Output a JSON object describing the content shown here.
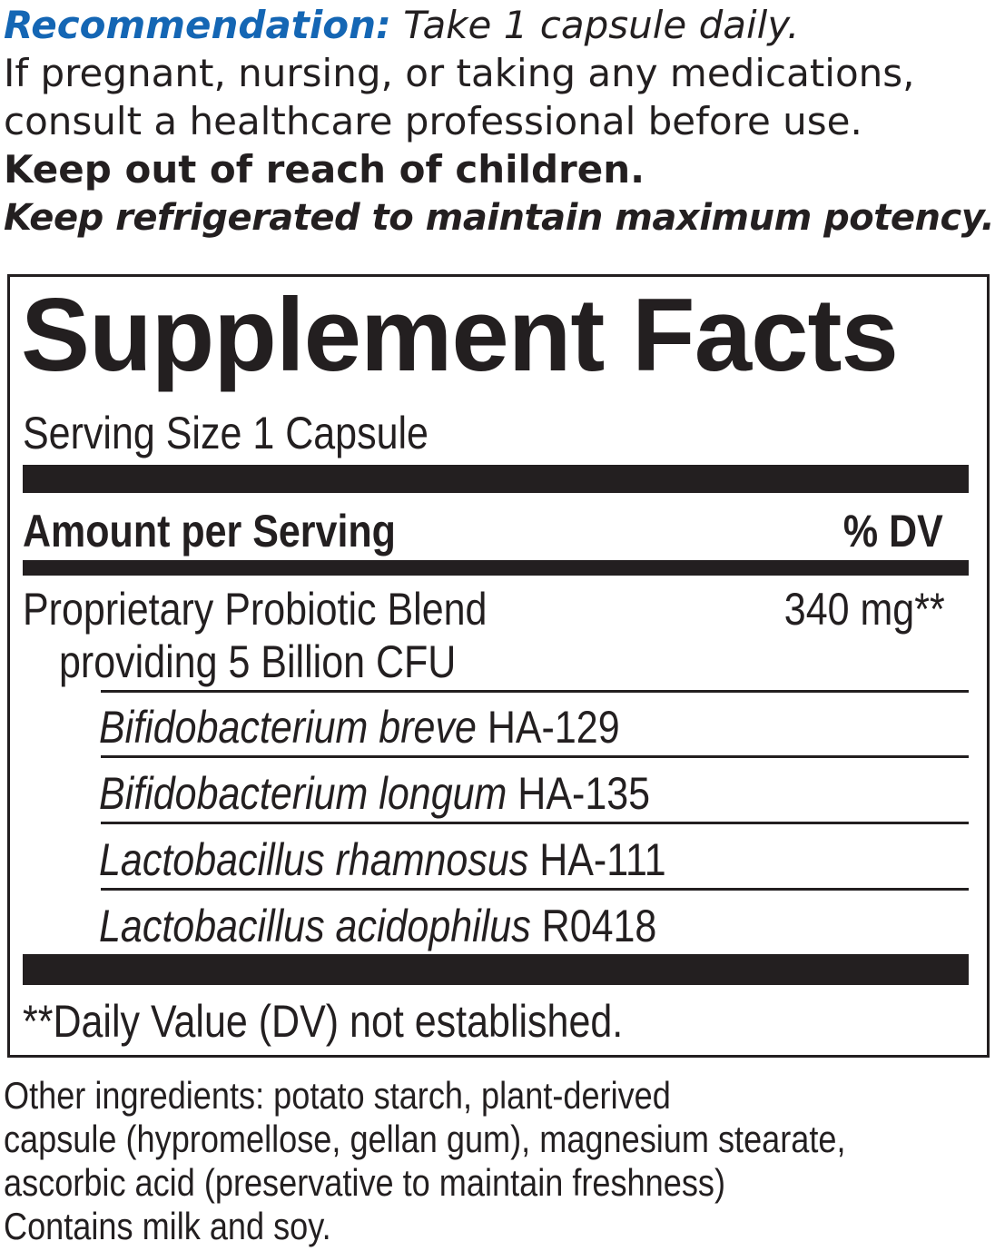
{
  "recommendation": {
    "label": "Recommendation:",
    "text": " Take 1 capsule daily.",
    "warning_1": "If pregnant, nursing, or taking any medications,",
    "warning_2": "consult a healthcare professional before use.",
    "keep_out": "Keep out of reach of children.",
    "refrigerate": "Keep refrigerated to maintain maximum potency."
  },
  "facts": {
    "title": "Supplement Facts",
    "serving_size": "Serving Size 1 Capsule",
    "amount_header": "Amount per Serving",
    "dv_header": "% DV",
    "blend_name": "Proprietary Probiotic Blend",
    "blend_detail": "providing 5 Billion CFU",
    "blend_amount": "340 mg**",
    "strains": [
      {
        "species": "Bifidobacterium breve",
        "strain": " HA-129"
      },
      {
        "species": "Bifidobacterium longum",
        "strain": " HA-135"
      },
      {
        "species": "Lactobacillus rhamnosus",
        "strain": " HA-111"
      },
      {
        "species": "Lactobacillus acidophilus",
        "strain": " R0418"
      }
    ],
    "footnote": "**Daily Value (DV) not established."
  },
  "other_ingredients": [
    "Other ingredients: potato starch, plant-derived",
    "capsule (hypromellose, gellan gum), magnesium stearate,",
    "ascorbic acid (preservative to maintain freshness)",
    "Contains milk and soy."
  ],
  "colors": {
    "accent": "#1466b4",
    "text": "#231f20"
  }
}
